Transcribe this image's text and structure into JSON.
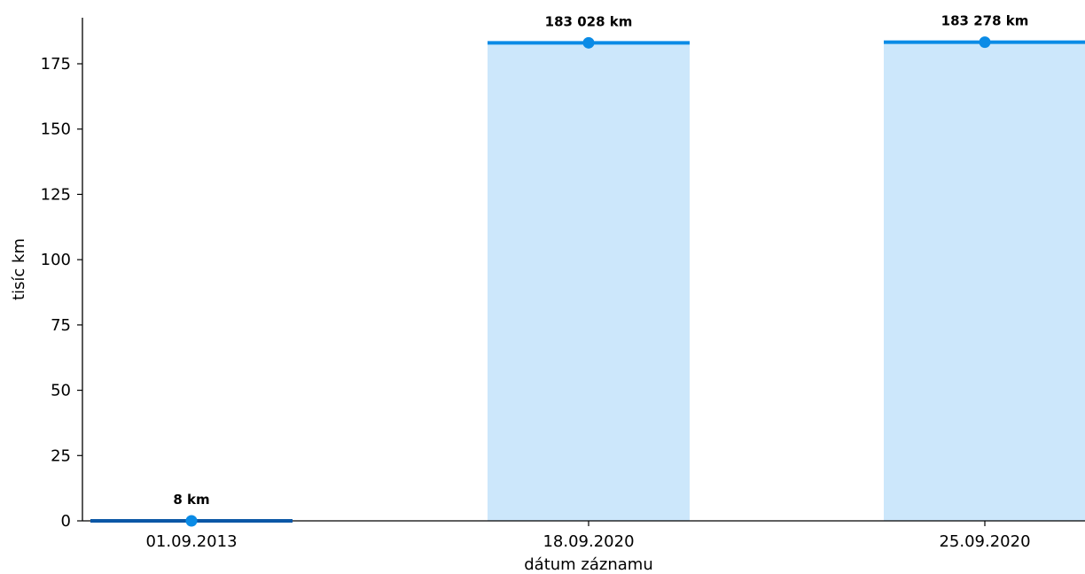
{
  "chart_data": {
    "type": "bar",
    "title": "",
    "xlabel": "dátum záznamu",
    "ylabel": "tisíc km",
    "categories": [
      "01.09.2013",
      "18.09.2020",
      "25.09.2020"
    ],
    "values": [
      0.008,
      183.028,
      183.278
    ],
    "data_labels": [
      "8 km",
      "183 028 km",
      "183 278 km"
    ],
    "ylim": [
      0,
      192
    ],
    "yticks": [
      0,
      25,
      50,
      75,
      100,
      125,
      150,
      175
    ],
    "grid": false,
    "legend": "none",
    "colors": {
      "bar_fill": "#cce7fb",
      "bar_top_line": "#0a8be6",
      "first_bar_line": "#0b57a6",
      "marker": "#0a8be6",
      "axis": "#000000"
    }
  }
}
